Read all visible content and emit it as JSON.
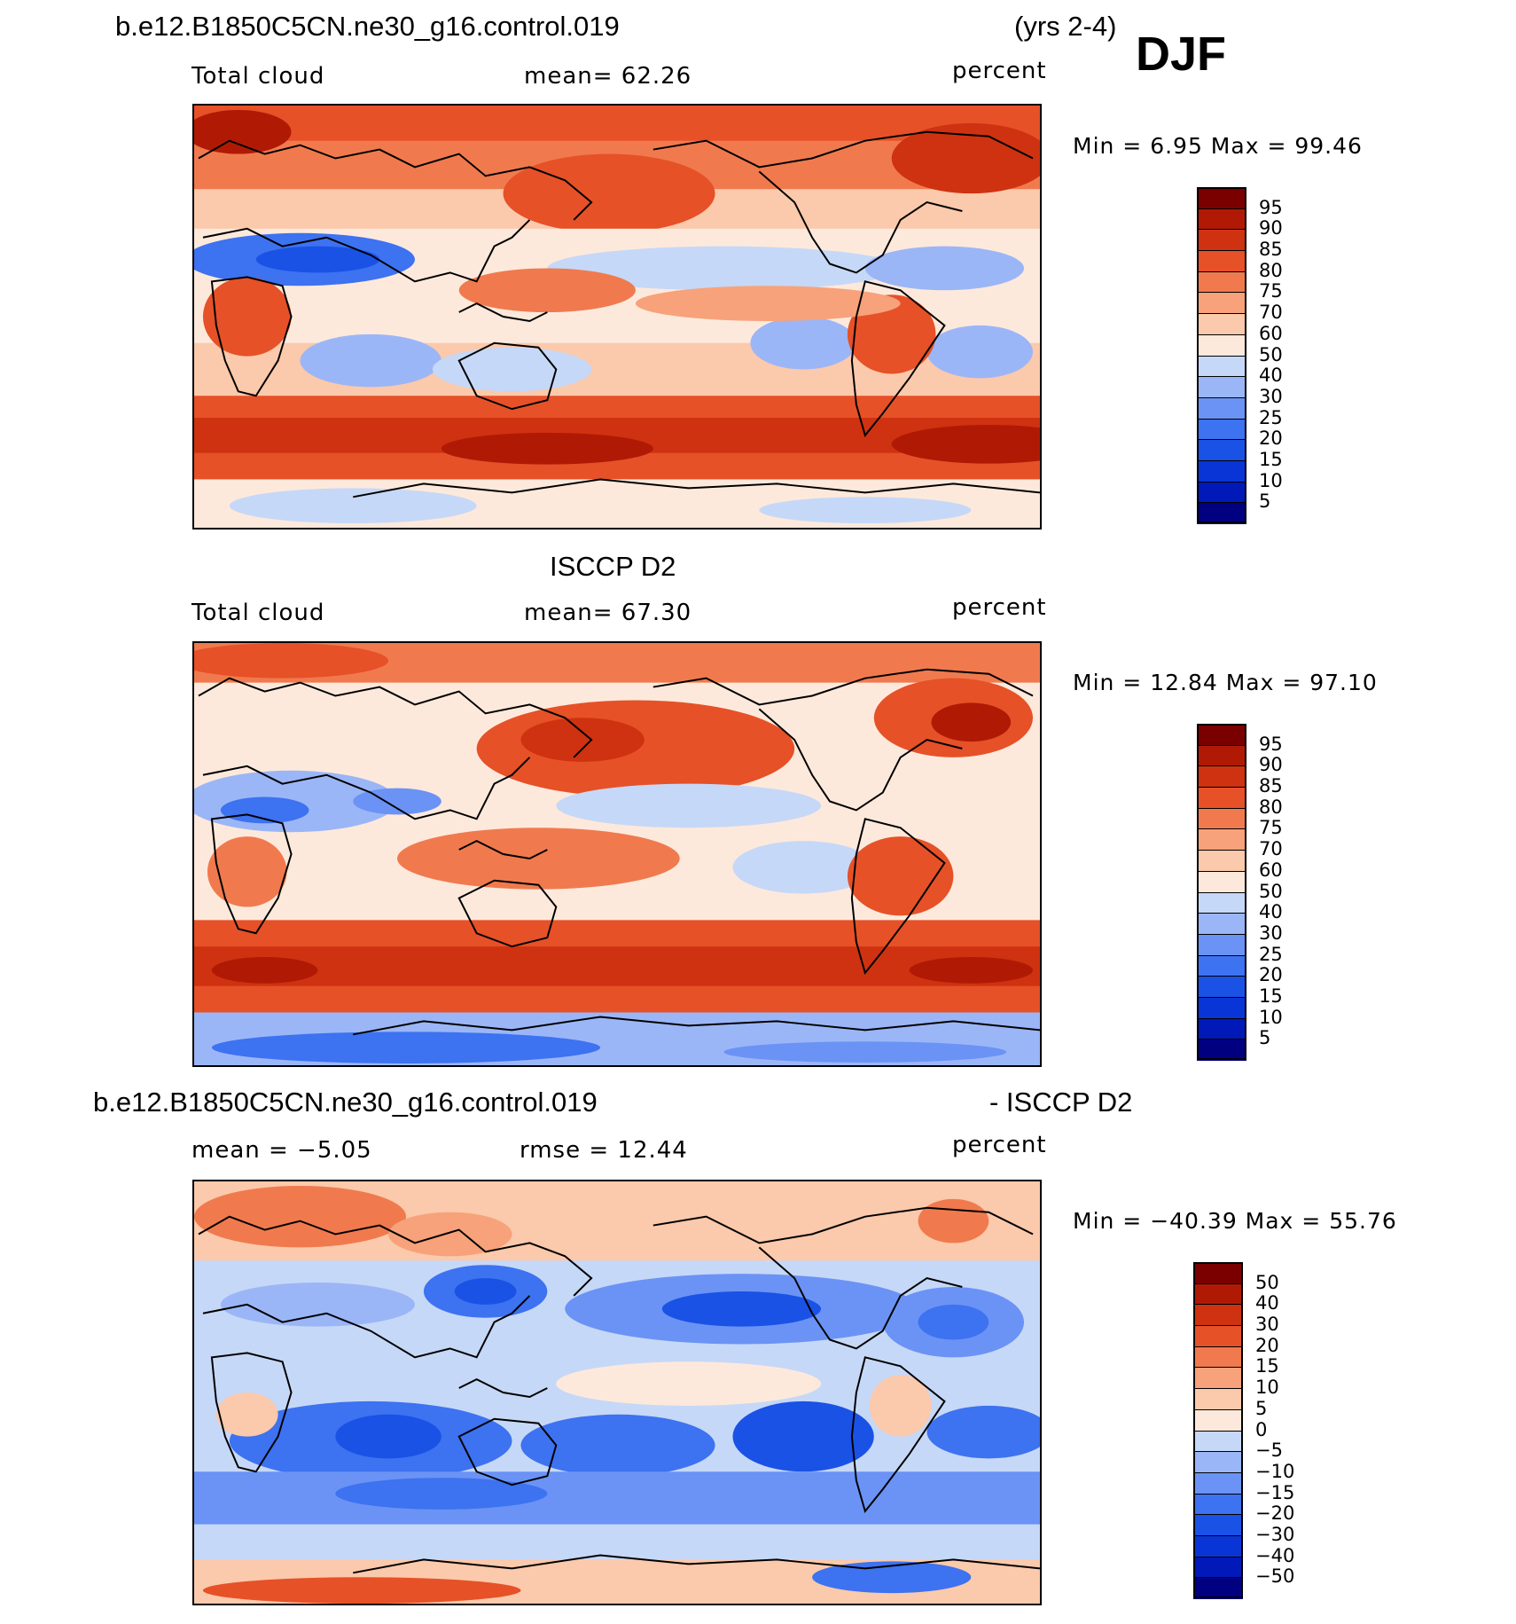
{
  "header": {
    "case_name": "b.e12.B1850C5CN.ne30_g16.control.019",
    "years": "(yrs 2-4)",
    "season": "DJF"
  },
  "panels": [
    {
      "id": "model",
      "title": "",
      "left_label": "Total cloud",
      "center_label": "mean=   62.26",
      "units": "percent",
      "minmax": "Min =    6.95 Max =   99.46",
      "min": 6.95,
      "max": 99.46,
      "mean": 62.26,
      "colorbar_labels": [
        "95",
        "90",
        "85",
        "80",
        "75",
        "70",
        "60",
        "50",
        "40",
        "30",
        "25",
        "20",
        "15",
        "10",
        "5"
      ]
    },
    {
      "id": "obs",
      "title": "ISCCP D2",
      "left_label": "Total cloud",
      "center_label": "mean=   67.30",
      "units": "percent",
      "minmax": "Min =   12.84 Max =   97.10",
      "min": 12.84,
      "max": 97.1,
      "mean": 67.3,
      "colorbar_labels": [
        "95",
        "90",
        "85",
        "80",
        "75",
        "70",
        "60",
        "50",
        "40",
        "30",
        "25",
        "20",
        "15",
        "10",
        "5"
      ]
    },
    {
      "id": "diff",
      "title_left": "b.e12.B1850C5CN.ne30_g16.control.019",
      "title_right": "- ISCCP D2",
      "left_label": "mean =   −5.05",
      "center_label": "rmse =   12.44",
      "units": "percent",
      "minmax": "Min = −40.39 Max =   55.76",
      "min": -40.39,
      "max": 55.76,
      "mean": -5.05,
      "rmse": 12.44,
      "colorbar_labels": [
        "50",
        "40",
        "30",
        "20",
        "15",
        "10",
        "5",
        "0",
        "−5",
        "−10",
        "−15",
        "−20",
        "−30",
        "−40",
        "−50"
      ]
    }
  ],
  "colors": {
    "palette": [
      "#000080",
      "#0019b8",
      "#0a35d6",
      "#1a52e6",
      "#3d72f0",
      "#6b93f5",
      "#9bb6f7",
      "#c6d8f7",
      "#e3ecf8",
      "#fde9dc",
      "#fbc9ab",
      "#f7a27a",
      "#f07a4e",
      "#e65128",
      "#cf3210",
      "#b01a05",
      "#7a0000"
    ]
  }
}
